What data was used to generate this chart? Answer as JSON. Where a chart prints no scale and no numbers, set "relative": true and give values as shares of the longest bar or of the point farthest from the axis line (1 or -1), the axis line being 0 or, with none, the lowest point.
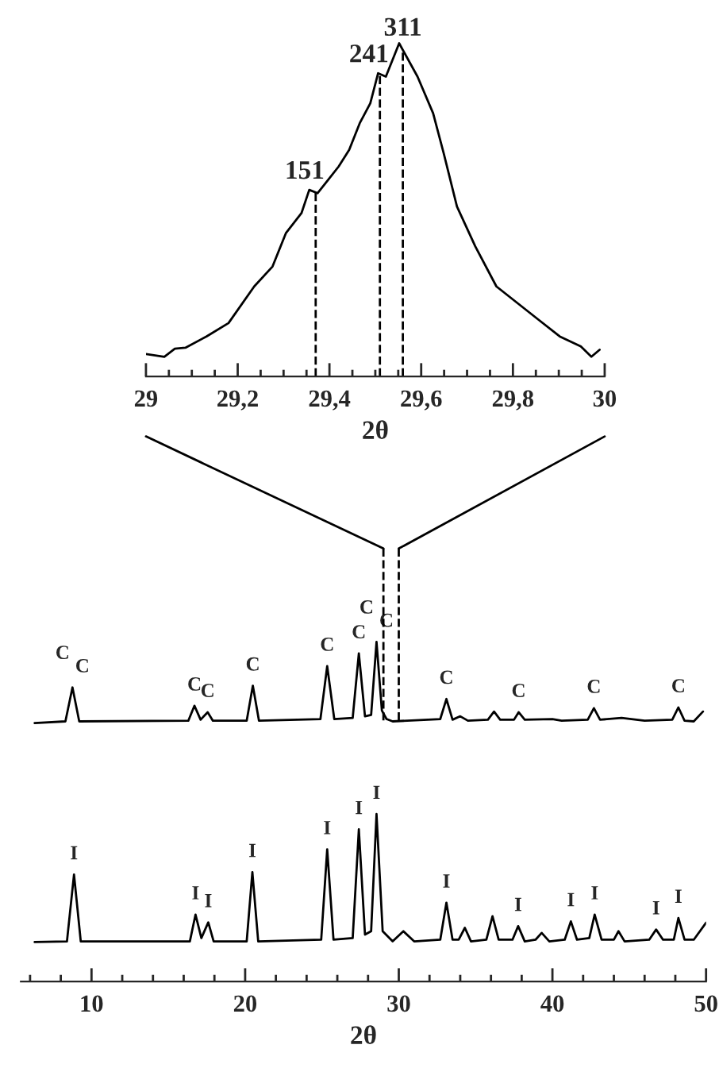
{
  "chart_data": [
    {
      "type": "line",
      "relative": true,
      "xlabel": "2θ",
      "xlim": [
        29,
        30
      ],
      "line_style": "solid",
      "xticks": [
        29,
        {
          "value": 29.05,
          "label": null
        },
        {
          "value": 29.1,
          "label": null
        },
        {
          "value": 29.15,
          "label": null
        },
        {
          "value": 29.2,
          "label": "29,2"
        },
        {
          "value": 29.25,
          "label": null
        },
        {
          "value": 29.3,
          "label": null
        },
        {
          "value": 29.35,
          "label": null
        },
        {
          "value": 29.4,
          "label": "29,4"
        },
        {
          "value": 29.45,
          "label": null
        },
        {
          "value": 29.5,
          "label": null
        },
        {
          "value": 29.55,
          "label": null
        },
        {
          "value": 29.6,
          "label": "29,6"
        },
        {
          "value": 29.65,
          "label": null
        },
        {
          "value": 29.7,
          "label": null
        },
        {
          "value": 29.75,
          "label": null
        },
        {
          "value": 29.8,
          "label": "29,8"
        },
        {
          "value": 29.85,
          "label": null
        },
        {
          "value": 29.9,
          "label": null
        },
        {
          "value": 29.95,
          "label": null
        },
        30
      ],
      "series": [
        {
          "color": "#000000",
          "x": [
            29.0,
            29.04,
            29.063,
            29.086,
            29.132,
            29.18,
            29.236,
            29.276,
            29.305,
            29.339,
            29.356,
            29.374,
            29.397,
            29.42,
            29.443,
            29.466,
            29.489,
            29.506,
            29.523,
            29.552,
            29.592,
            29.626,
            29.649,
            29.678,
            29.718,
            29.764,
            29.81,
            29.856,
            29.902,
            29.948,
            29.971,
            29.989
          ],
          "values": [
            0.067,
            0.059,
            0.083,
            0.086,
            0.12,
            0.16,
            0.27,
            0.33,
            0.43,
            0.49,
            0.56,
            0.55,
            0.59,
            0.63,
            0.68,
            0.76,
            0.82,
            0.91,
            0.9,
            1.0,
            0.9,
            0.79,
            0.67,
            0.51,
            0.39,
            0.27,
            0.22,
            0.17,
            0.12,
            0.09,
            0.059,
            0.08
          ]
        }
      ],
      "ref_lines": [
        {
          "axis": "x",
          "value": 29.37,
          "line_style": "dashed"
        },
        {
          "axis": "x",
          "value": 29.51,
          "line_style": "dashed"
        },
        {
          "axis": "x",
          "value": 29.56,
          "line_style": "dashed"
        }
      ],
      "annotations": [
        {
          "text": "151",
          "x": 29.37,
          "y": 0.55
        },
        {
          "text": "241",
          "x": 29.51,
          "y": 0.9
        },
        {
          "text": "311",
          "x": 29.56,
          "y": 0.98
        }
      ]
    },
    {
      "type": "line",
      "relative": true,
      "xlabel": "2θ",
      "xlim": [
        5.4,
        50
      ],
      "line_style": "solid",
      "xticks": [
        {
          "value": 6,
          "label": null
        },
        {
          "value": 8,
          "label": null
        },
        10,
        {
          "value": 12,
          "label": null
        },
        {
          "value": 14,
          "label": null
        },
        {
          "value": 16,
          "label": null
        },
        {
          "value": 18,
          "label": null
        },
        20,
        {
          "value": 22,
          "label": null
        },
        {
          "value": 24,
          "label": null
        },
        {
          "value": 26,
          "label": null
        },
        {
          "value": 28,
          "label": null
        },
        30,
        {
          "value": 32,
          "label": null
        },
        {
          "value": 34,
          "label": null
        },
        {
          "value": 36,
          "label": null
        },
        {
          "value": 38,
          "label": null
        },
        40,
        {
          "value": 42,
          "label": null
        },
        {
          "value": 44,
          "label": null
        },
        {
          "value": 46,
          "label": null
        },
        {
          "value": 48,
          "label": null
        },
        50
      ],
      "series": [
        {
          "color": "#000000",
          "x": [
            6.3,
            8.3,
            8.76,
            9.2,
            16.3,
            16.7,
            17.1,
            17.56,
            17.9,
            20.1,
            20.5,
            20.9,
            24.9,
            25.34,
            25.8,
            27.0,
            27.4,
            27.8,
            28.2,
            28.55,
            28.9,
            29.2,
            29.6,
            32.7,
            33.1,
            33.5,
            34.0,
            34.5,
            35.8,
            36.2,
            36.6,
            37.5,
            37.8,
            38.2,
            40.0,
            40.6,
            42.3,
            42.7,
            43.1,
            44.5,
            46.0,
            47.8,
            48.2,
            48.6,
            49.2,
            49.8
          ],
          "values": [
            0.761,
            0.766,
            0.866,
            0.766,
            0.768,
            0.812,
            0.771,
            0.793,
            0.768,
            0.768,
            0.871,
            0.768,
            0.773,
            0.929,
            0.773,
            0.776,
            0.966,
            0.781,
            0.785,
            1.0,
            0.798,
            0.773,
            0.766,
            0.773,
            0.832,
            0.771,
            0.781,
            0.768,
            0.771,
            0.795,
            0.771,
            0.771,
            0.793,
            0.771,
            0.773,
            0.768,
            0.771,
            0.805,
            0.771,
            0.776,
            0.768,
            0.771,
            0.807,
            0.768,
            0.766,
            0.795
          ]
        },
        {
          "color": "#000000",
          "x": [
            6.3,
            8.4,
            8.86,
            9.3,
            16.4,
            16.77,
            17.15,
            17.6,
            17.95,
            20.1,
            20.47,
            20.85,
            24.95,
            25.34,
            25.75,
            27.0,
            27.4,
            27.8,
            28.2,
            28.55,
            28.95,
            29.6,
            30.3,
            31.0,
            32.7,
            33.1,
            33.5,
            33.9,
            34.3,
            34.7,
            35.7,
            36.1,
            36.5,
            37.4,
            37.77,
            38.2,
            38.9,
            39.3,
            39.8,
            40.8,
            41.2,
            41.6,
            42.4,
            42.75,
            43.2,
            44.0,
            44.3,
            44.7,
            46.3,
            46.75,
            47.2,
            47.9,
            48.2,
            48.6,
            49.2,
            50.0
          ],
          "values": [
            0.116,
            0.118,
            0.315,
            0.118,
            0.118,
            0.197,
            0.128,
            0.174,
            0.118,
            0.118,
            0.322,
            0.118,
            0.123,
            0.389,
            0.123,
            0.128,
            0.448,
            0.138,
            0.148,
            0.493,
            0.148,
            0.118,
            0.148,
            0.118,
            0.123,
            0.232,
            0.123,
            0.123,
            0.158,
            0.118,
            0.123,
            0.192,
            0.123,
            0.123,
            0.163,
            0.118,
            0.123,
            0.143,
            0.118,
            0.123,
            0.177,
            0.123,
            0.128,
            0.197,
            0.123,
            0.123,
            0.148,
            0.118,
            0.123,
            0.153,
            0.123,
            0.123,
            0.187,
            0.123,
            0.123,
            0.173
          ]
        }
      ],
      "annotations": [
        {
          "text": "C",
          "x": 8.76,
          "y": 0.866
        },
        {
          "text": "C",
          "x": 8.76,
          "y": 0.866
        },
        {
          "text": "C",
          "x": 16.7,
          "y": 0.812
        },
        {
          "text": "C",
          "x": 17.56,
          "y": 0.793
        },
        {
          "text": "C",
          "x": 20.5,
          "y": 0.871
        },
        {
          "text": "C",
          "x": 25.34,
          "y": 0.929
        },
        {
          "text": "C",
          "x": 27.4,
          "y": 0.966
        },
        {
          "text": "C",
          "x": 28.55,
          "y": 1.0
        },
        {
          "text": "C",
          "x": 28.55,
          "y": 1.0
        },
        {
          "text": "C",
          "x": 33.1,
          "y": 0.832
        },
        {
          "text": "C",
          "x": 37.8,
          "y": 0.793
        },
        {
          "text": "C",
          "x": 42.7,
          "y": 0.805
        },
        {
          "text": "C",
          "x": 48.2,
          "y": 0.807
        },
        {
          "text": "I",
          "x": 8.86,
          "y": 0.315
        },
        {
          "text": "I",
          "x": 16.77,
          "y": 0.197
        },
        {
          "text": "I",
          "x": 17.6,
          "y": 0.174
        },
        {
          "text": "I",
          "x": 20.47,
          "y": 0.322
        },
        {
          "text": "I",
          "x": 25.34,
          "y": 0.389
        },
        {
          "text": "I",
          "x": 27.4,
          "y": 0.448
        },
        {
          "text": "I",
          "x": 28.55,
          "y": 0.493
        },
        {
          "text": "I",
          "x": 33.1,
          "y": 0.232
        },
        {
          "text": "I",
          "x": 37.77,
          "y": 0.163
        },
        {
          "text": "I",
          "x": 41.2,
          "y": 0.177
        },
        {
          "text": "I",
          "x": 42.75,
          "y": 0.197
        },
        {
          "text": "I",
          "x": 46.75,
          "y": 0.153
        },
        {
          "text": "I",
          "x": 48.2,
          "y": 0.187
        }
      ]
    }
  ]
}
